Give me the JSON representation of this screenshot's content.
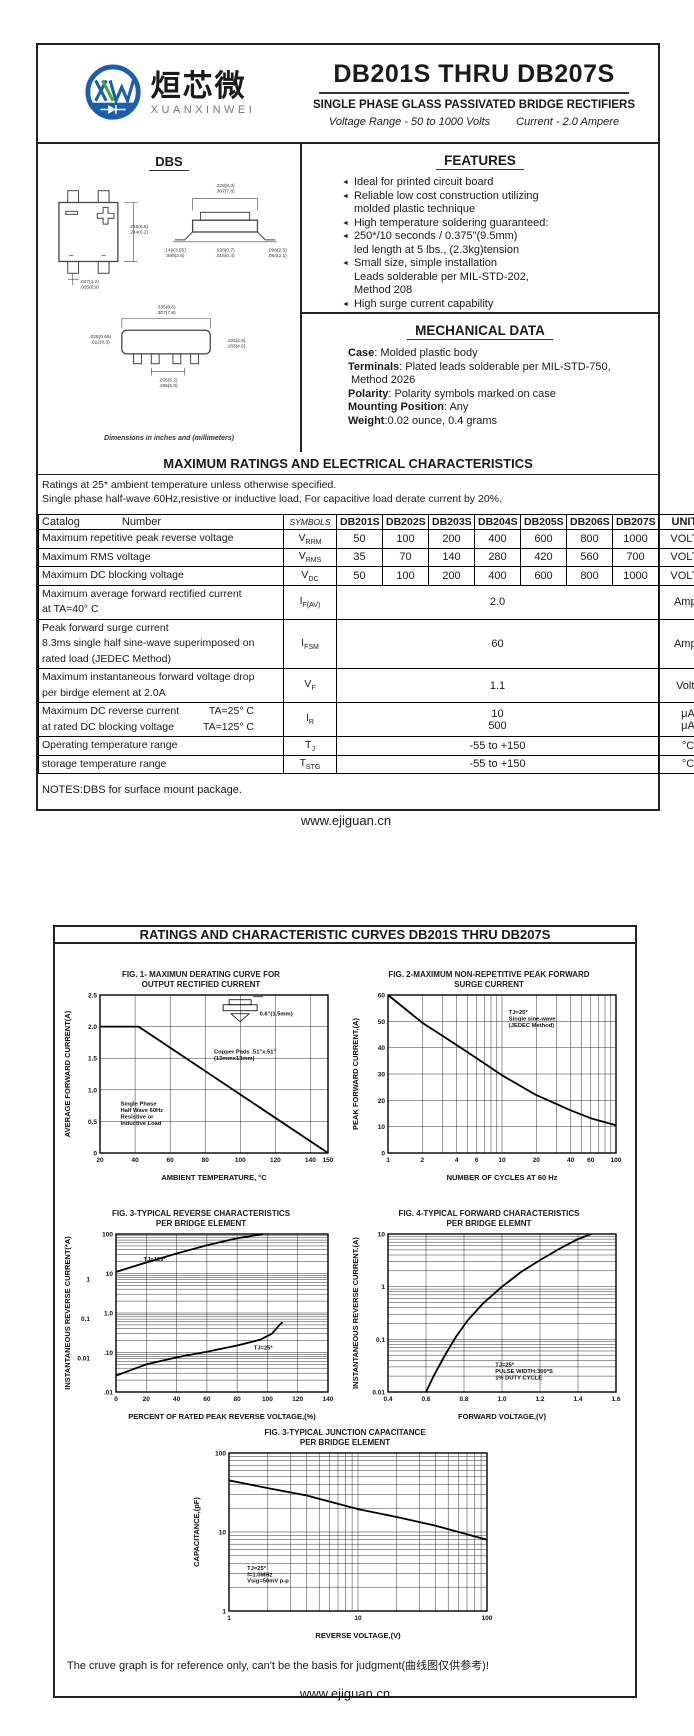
{
  "page1": {
    "logo": {
      "cn": "烜芯微",
      "en": "XUANXINWEI"
    },
    "title": "DB201S THRU DB207S",
    "subtitle": "SINGLE PHASE GLASS PASSIVATED BRIDGE RECTIFIERS",
    "range_voltage": "Voltage Range - 50 to 1000 Volts",
    "range_current": "Current - 2.0 Ampere",
    "package": {
      "heading": "DBS",
      "caption": "Dimensions in inches and (millimeters)",
      "dims": {
        "tv_r": [
          ".256(6.5)",
          ".244(6.2)"
        ],
        "tv_pin": [
          ".047(1.2)",
          ".035(0.9)"
        ],
        "sv_top": [
          ".328(8.3)",
          ".307(7.8)"
        ],
        "sv_left": [
          ".140(3.55)",
          ".098(2.5)"
        ],
        "sv_mid": [
          ".028(0.7)",
          ".016(0.4)"
        ],
        "sv_right": [
          ".098(2.5)",
          ".084(2.1)"
        ],
        "bv_top": [
          ".335(8.5)",
          ".307(7.8)"
        ],
        "bv_left": [
          ".026(0.65)",
          ".012(0.3)"
        ],
        "bv_right": [
          ".193(4.9)",
          ".183(4.6)"
        ],
        "bv_pitch": [
          ".205(5.2)",
          ".195(5.0)"
        ]
      }
    },
    "features": {
      "heading": "FEATURES",
      "items": [
        {
          "text": "Ideal for printed circuit board"
        },
        {
          "text": "Reliable low cost construction utilizing",
          "cont": [
            "molded plastic technique"
          ]
        },
        {
          "text": "High temperature soldering guaranteed:"
        },
        {
          "text": "250*/10 seconds / 0.375\"(9.5mm)",
          "cont": [
            "led length at 5 lbs., (2.3kg)tension"
          ]
        },
        {
          "text": "Small size, simple installation",
          "cont": [
            "Leads solderable per MIL-STD-202,",
            "Method 208"
          ]
        },
        {
          "text": "High surge current capability"
        }
      ]
    },
    "mechanical": {
      "heading": "MECHANICAL DATA",
      "rows": [
        {
          "label": "Case",
          "text": ": Molded plastic body"
        },
        {
          "label": "Terminals",
          "text": ": Plated leads solderable per MIL-STD-750,",
          "cont": [
            "Method 2026"
          ]
        },
        {
          "label": "Polarity",
          "text": ": Polarity symbols marked on case"
        },
        {
          "label": "Mounting Position",
          "text": ": Any"
        },
        {
          "label": "Weight",
          "text": ":0.02 ounce, 0.4 grams"
        }
      ]
    },
    "ratings": {
      "heading": "MAXIMUM RATINGS AND ELECTRICAL CHARACTERISTICS",
      "note1": "Ratings at 25* ambient temperature unless otherwise specified.",
      "note2": "Single phase half-wave 60Hz,resistive or inductive load, For capacitive load derate current by 20%.",
      "col_catalog": "Catalog",
      "col_number": "Number",
      "col_symbols": "SYMBOLS",
      "devices": [
        "DB201S",
        "DB202S",
        "DB203S",
        "DB204S",
        "DB205S",
        "DB206S",
        "DB207S"
      ],
      "col_units": "UNITS",
      "rows": [
        {
          "label": "Maximum repetitive peak reverse voltage",
          "sym": "V",
          "sub": "RRM",
          "values": [
            "50",
            "100",
            "200",
            "400",
            "600",
            "800",
            "1000"
          ],
          "units": "VOLTS"
        },
        {
          "label": "Maximum RMS voltage",
          "sym": "V",
          "sub": "RMS",
          "values": [
            "35",
            "70",
            "140",
            "280",
            "420",
            "560",
            "700"
          ],
          "units": "VOLTS"
        },
        {
          "label": "Maximum DC blocking voltage",
          "sym": "V",
          "sub": "DC",
          "values": [
            "50",
            "100",
            "200",
            "400",
            "600",
            "800",
            "1000"
          ],
          "units": "VOLTS"
        },
        {
          "label": "Maximum average forward rectified current",
          "label2": "at TA=40° C",
          "sym": "I",
          "sub": "F(AV)",
          "span": "2.0",
          "units": "Amps"
        },
        {
          "label": "Peak forward surge current",
          "label2": "8.3ms single half sine-wave superimposed on",
          "label3": "rated load (JEDEC Method)",
          "sym": "I",
          "sub": "FSM",
          "span": "60",
          "units": "Amps"
        },
        {
          "label": "Maximum instantaneous forward voltage drop",
          "label2": "per birdge element at 2.0A",
          "sym": "V",
          "sub": "F",
          "span": "1.1",
          "units": "Volts"
        },
        {
          "label": "Maximum DC reverse current",
          "labelr": "TA=25° C",
          "label2": "at rated DC blocking voltage",
          "label2r": "TA=125° C",
          "sym": "I",
          "sub": "R",
          "span2": [
            "10",
            "500"
          ],
          "units2": [
            "μA",
            "μA"
          ]
        },
        {
          "label": "Operating temperature range",
          "sym": "T",
          "sub": "J",
          "span": "-55 to +150",
          "units": "°C"
        },
        {
          "label": "storage temperature range",
          "sym": "T",
          "sub": "STG",
          "span": "-55 to +150",
          "units": "°C"
        }
      ]
    },
    "notes": "NOTES:DBS for surface mount package.",
    "footer": "www.ejiguan.cn"
  },
  "page2": {
    "heading": "RATINGS AND CHARACTERISTIC CURVES DB201S THRU DB207S",
    "disclaimer": "The cruve graph is for reference only, can't be the basis for judgment(曲线图仅供参考)!",
    "footer": "www.ejiguan.cn"
  },
  "chart_data": [
    {
      "id": "fig1",
      "type": "line",
      "title": [
        "FIG. 1- MAXIMUN DERATING CURVE FOR",
        "OUTPUT RECTIFIED CURRENT"
      ],
      "xlabel": "AMBIENT TEMPERATURE, °C",
      "ylabel": "AVERAGE FORWARD CURRENT(A)",
      "x": {
        "min": 20,
        "max": 150,
        "scale": "linear",
        "ticks": [
          20,
          40,
          60,
          80,
          100,
          120,
          140,
          150
        ],
        "labels": [
          "20",
          "40",
          "60",
          "80",
          "100",
          "120",
          "140",
          "150"
        ]
      },
      "y": {
        "min": 0,
        "max": 2.5,
        "scale": "linear",
        "ticks": [
          0,
          0.5,
          1.0,
          1.5,
          2.0,
          2.5
        ],
        "labels": [
          "0",
          "0.5",
          "1.0",
          "1.5",
          "2.0",
          "2.5"
        ]
      },
      "series": [
        {
          "name": "derating",
          "points": [
            [
              20,
              2.0
            ],
            [
              42,
              2.0
            ],
            [
              150,
              0
            ]
          ]
        }
      ],
      "annotations": [
        {
          "lines": [
            "0.6\"(1.5mm)"
          ],
          "rx": 0.7,
          "ry": 0.13
        },
        {
          "lines": [
            "Copper Pads .51\"x.51\"",
            "(13mmx13mm)"
          ],
          "rx": 0.5,
          "ry": 0.37
        },
        {
          "lines": [
            "Single Phase",
            "Half Wave 60Hz",
            "Resistive or",
            "Inductive Load"
          ],
          "rx": 0.09,
          "ry": 0.7
        }
      ],
      "pkg_icon": {
        "rx": 0.54,
        "ry": 0.03
      }
    },
    {
      "id": "fig2",
      "type": "line",
      "title": [
        "FIG. 2-MAXIMUM NON-REPETITIVE PEAK FORWARD",
        "SURGE CURRENT"
      ],
      "xlabel": "NUMBER OF CYCLES AT 60 Hz",
      "ylabel": "PEAK  FORWARD CURRENT,(A)",
      "x": {
        "min": 1,
        "max": 100,
        "scale": "log",
        "ticks": [
          1,
          2,
          4,
          6,
          10,
          20,
          40,
          60,
          100
        ],
        "labels": [
          "1",
          "2",
          "4",
          "6",
          "10",
          "20",
          "40",
          "60",
          "100"
        ]
      },
      "y": {
        "min": 0,
        "max": 60,
        "scale": "linear",
        "ticks": [
          0,
          10,
          20,
          30,
          40,
          50,
          60
        ],
        "labels": [
          "0",
          "10",
          "20",
          "30",
          "40",
          "50",
          "60"
        ]
      },
      "series": [
        {
          "name": "surge",
          "points": [
            [
              1,
              60
            ],
            [
              2,
              49.5
            ],
            [
              3,
              44.5
            ],
            [
              4,
              41
            ],
            [
              6,
              36
            ],
            [
              10,
              29.5
            ],
            [
              20,
              22
            ],
            [
              40,
              16.2
            ],
            [
              60,
              13.2
            ],
            [
              100,
              10.5
            ]
          ]
        }
      ],
      "annotations": [
        {
          "lines": [
            "TJ=25*",
            "Single sine-wave",
            "(JEDEC Method)"
          ],
          "rx": 0.53,
          "ry": 0.12
        }
      ]
    },
    {
      "id": "fig3",
      "type": "line",
      "title": [
        "FIG. 3-TYPICAL REVERSE CHARACTERISTICS",
        "PER BRIDGE ELEMENT"
      ],
      "xlabel": "PERCENT OF RATED PEAK REVERSE VOLTAGE,(%)",
      "ylabel": "INSTANTANEOUS REVERSE CURRENT(*A)",
      "x": {
        "min": 0,
        "max": 140,
        "scale": "linear",
        "ticks": [
          0,
          20,
          40,
          60,
          80,
          100,
          120,
          140
        ],
        "labels": [
          "0",
          "20",
          "40",
          "60",
          "80",
          "100",
          "120",
          "140"
        ]
      },
      "y": {
        "min": 0.01,
        "max": 100,
        "scale": "log",
        "ticks": [
          100,
          10,
          1,
          0.1,
          0.01
        ],
        "labels": [
          "100",
          "10",
          "1.0",
          ".10",
          ".01"
        ],
        "outer": [
          {
            "v": 7,
            "l": "1"
          },
          {
            "v": 0.7,
            "l": "0.1"
          },
          {
            "v": 0.07,
            "l": "0.01"
          }
        ]
      },
      "series": [
        {
          "name": "tj125",
          "points": [
            [
              0,
              11
            ],
            [
              20,
              19
            ],
            [
              40,
              32
            ],
            [
              60,
              52
            ],
            [
              80,
              78
            ],
            [
              97,
              100
            ]
          ]
        },
        {
          "name": "tj25",
          "points": [
            [
              0,
              0.026
            ],
            [
              20,
              0.05
            ],
            [
              40,
              0.075
            ],
            [
              60,
              0.105
            ],
            [
              80,
              0.15
            ],
            [
              95,
              0.21
            ],
            [
              103,
              0.3
            ],
            [
              108,
              0.5
            ],
            [
              110,
              0.58
            ]
          ]
        }
      ],
      "annotations": [
        {
          "lines": [
            "TJ=125*"
          ],
          "rx": 0.13,
          "ry": 0.17
        },
        {
          "lines": [
            "TJ=25*"
          ],
          "rx": 0.65,
          "ry": 0.73
        }
      ]
    },
    {
      "id": "fig4",
      "type": "line",
      "title": [
        "FIG. 4-TYPICAL FORWARD CHARACTERISTICS",
        "PER BRIDGE ELEMNT"
      ],
      "xlabel": "FORWARD VOLTAGE,(V)",
      "ylabel": "INSTANTANEOUS REVERSE CURRENT.(A)",
      "x": {
        "min": 0.4,
        "max": 1.6,
        "scale": "linear",
        "ticks": [
          0.4,
          0.6,
          0.8,
          1.0,
          1.2,
          1.4,
          1.6
        ],
        "labels": [
          "0.4",
          "0.6",
          "0.8",
          "1.0",
          "1.2",
          "1.4",
          "1.6"
        ]
      },
      "y": {
        "min": 0.01,
        "max": 10,
        "scale": "log",
        "ticks": [
          10,
          1,
          0.1,
          0.01
        ],
        "labels": [
          "10",
          "1",
          "0.1",
          "0.01"
        ]
      },
      "series": [
        {
          "name": "forward",
          "points": [
            [
              0.6,
              0.01
            ],
            [
              0.64,
              0.02
            ],
            [
              0.7,
              0.05
            ],
            [
              0.76,
              0.115
            ],
            [
              0.82,
              0.23
            ],
            [
              0.9,
              0.48
            ],
            [
              1.0,
              1.0
            ],
            [
              1.1,
              1.9
            ],
            [
              1.2,
              3.2
            ],
            [
              1.3,
              5.2
            ],
            [
              1.4,
              8.0
            ],
            [
              1.47,
              10
            ]
          ]
        }
      ],
      "annotations": [
        {
          "lines": [
            "TJ=25*",
            "PULSE WIDTH:300*S",
            "1% DUTY CYCLE"
          ],
          "rx": 0.47,
          "ry": 0.84
        }
      ]
    },
    {
      "id": "fig5",
      "type": "line",
      "center": true,
      "title": [
        "FIG. 3-TYPICAL JUNCTION CAPACITANCE",
        "PER BRIDGE ELEMENT"
      ],
      "xlabel": "REVERSE VOLTAGE,(V)",
      "ylabel": "CAPACITANCE,(pF)",
      "x": {
        "min": 1,
        "max": 100,
        "scale": "log",
        "ticks": [
          1,
          10,
          100
        ],
        "labels": [
          "1",
          "10",
          "100"
        ]
      },
      "y": {
        "min": 1,
        "max": 100,
        "scale": "log",
        "ticks": [
          100,
          10,
          1
        ],
        "labels": [
          "100",
          "10",
          "1"
        ]
      },
      "series": [
        {
          "name": "capacitance",
          "points": [
            [
              1,
              45
            ],
            [
              2,
              36
            ],
            [
              4,
              29
            ],
            [
              10,
              19.5
            ],
            [
              20,
              15.5
            ],
            [
              40,
              12
            ],
            [
              100,
              8
            ]
          ]
        }
      ],
      "annotations": [
        {
          "lines": [
            "TJ=25*",
            "f=1.0MHz",
            "Vsig=50mV p-p"
          ],
          "rx": 0.07,
          "ry": 0.74
        }
      ]
    }
  ]
}
